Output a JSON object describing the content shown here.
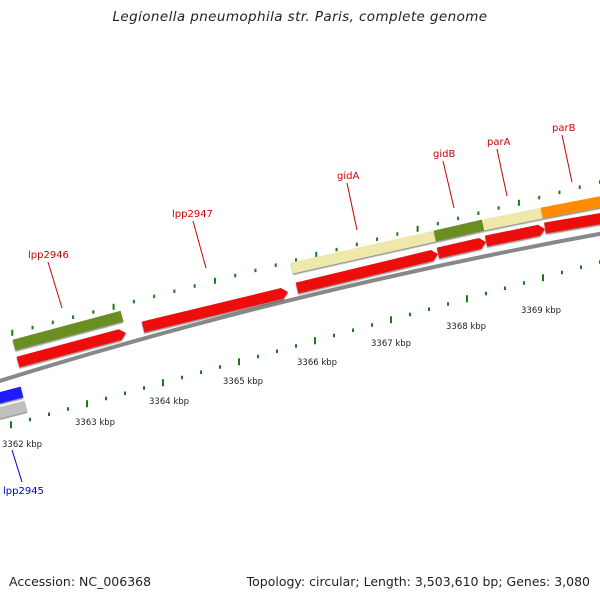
{
  "title": "Legionella pneumophila str. Paris, complete genome",
  "footer": {
    "accession": "Accession: NC_006368",
    "summary": "Topology: circular; Length: 3,503,610 bp; Genes: 3,080"
  },
  "colors": {
    "cds": "#ee1111",
    "backbone": "#888888",
    "tick": "#1a7a1a",
    "forward_label": "#cc0000",
    "reverse_label": "#0000cc",
    "cog_olive": "#6b8e23",
    "cog_khaki": "#eee8aa",
    "cog_orange": "#ff8c00",
    "cog_blue": "#1f1fff",
    "cog_gray": "#c0c0c0"
  },
  "scale": {
    "labels": [
      "3362 kbp",
      "3363 kbp",
      "3364 kbp",
      "3365 kbp",
      "3366 kbp",
      "3367 kbp",
      "3368 kbp",
      "3369 kbp"
    ]
  },
  "genes": [
    {
      "name": "lpp2945",
      "strand": "reverse",
      "label_color": "#0000cc",
      "cog_color": "#1f1fff"
    },
    {
      "name": "lpp2946",
      "strand": "forward",
      "label_color": "#cc0000",
      "cog_color": "#6b8e23"
    },
    {
      "name": "lpp2947",
      "strand": "forward",
      "label_color": "#cc0000",
      "cog_color": ""
    },
    {
      "name": "gidA",
      "strand": "forward",
      "label_color": "#cc0000",
      "cog_color": "#eee8aa"
    },
    {
      "name": "gidB",
      "strand": "forward",
      "label_color": "#cc0000",
      "cog_color": "#6b8e23"
    },
    {
      "name": "parA",
      "strand": "forward",
      "label_color": "#cc0000",
      "cog_color": "#eee8aa"
    },
    {
      "name": "parB",
      "strand": "forward",
      "label_color": "#cc0000",
      "cog_color": "#ff8c00"
    }
  ]
}
